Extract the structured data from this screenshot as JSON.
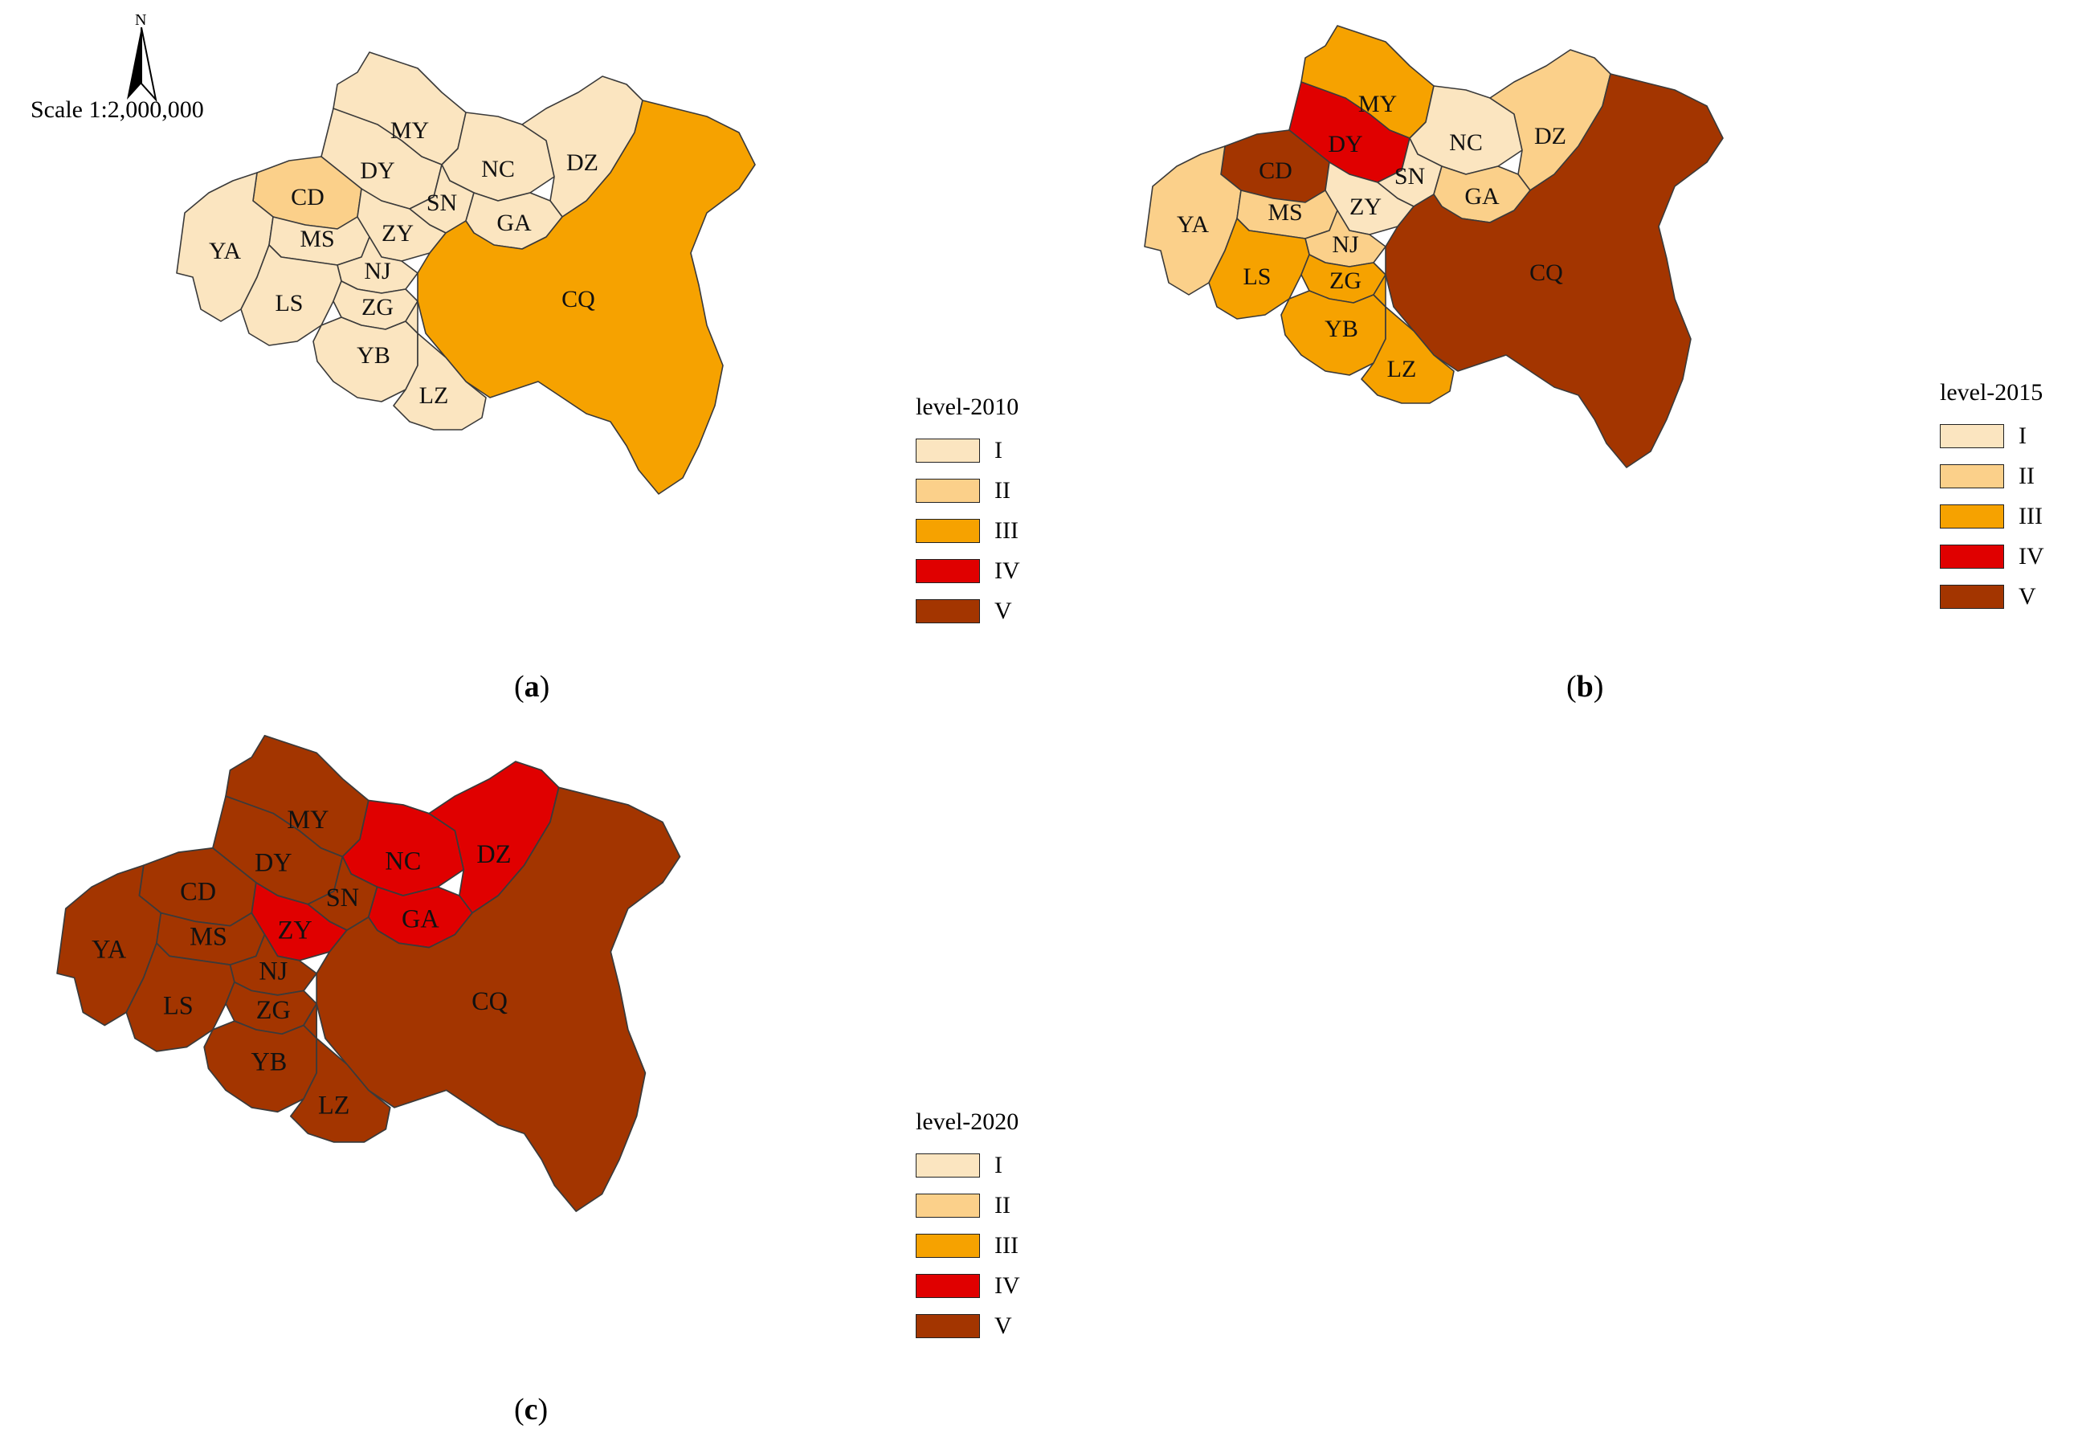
{
  "north_label": "N",
  "scale_text": "Scale 1:2,000,000",
  "level_colors": {
    "I": "#fbe5c0",
    "II": "#fbd08a",
    "III": "#f6a200",
    "IV": "#e00000",
    "V": "#a33500"
  },
  "legend_items": [
    "I",
    "II",
    "III",
    "IV",
    "V"
  ],
  "panels": [
    {
      "caption_open": "(",
      "caption_letter": "a",
      "caption_close": ")",
      "legend_title": "level-2010",
      "levels": {
        "MY": "I",
        "DY": "I",
        "NC": "I",
        "DZ": "I",
        "CD": "II",
        "SN": "I",
        "GA": "I",
        "YA": "I",
        "MS": "I",
        "ZY": "I",
        "NJ": "I",
        "CQ": "III",
        "LS": "I",
        "ZG": "I",
        "YB": "I",
        "LZ": "I"
      }
    },
    {
      "caption_open": "(",
      "caption_letter": "b",
      "caption_close": ")",
      "legend_title": "level-2015",
      "levels": {
        "MY": "III",
        "DY": "IV",
        "NC": "I",
        "DZ": "II",
        "CD": "V",
        "SN": "I",
        "GA": "II",
        "YA": "II",
        "MS": "II",
        "ZY": "I",
        "NJ": "II",
        "CQ": "V",
        "LS": "III",
        "ZG": "III",
        "YB": "III",
        "LZ": "III"
      }
    },
    {
      "caption_open": "(",
      "caption_letter": "c",
      "caption_close": ")",
      "legend_title": "level-2020",
      "levels": {
        "MY": "V",
        "DY": "V",
        "NC": "IV",
        "DZ": "IV",
        "CD": "V",
        "SN": "V",
        "GA": "IV",
        "YA": "V",
        "MS": "V",
        "ZY": "IV",
        "NJ": "V",
        "CQ": "V",
        "LS": "V",
        "ZG": "V",
        "YB": "V",
        "LZ": "V"
      }
    }
  ]
}
